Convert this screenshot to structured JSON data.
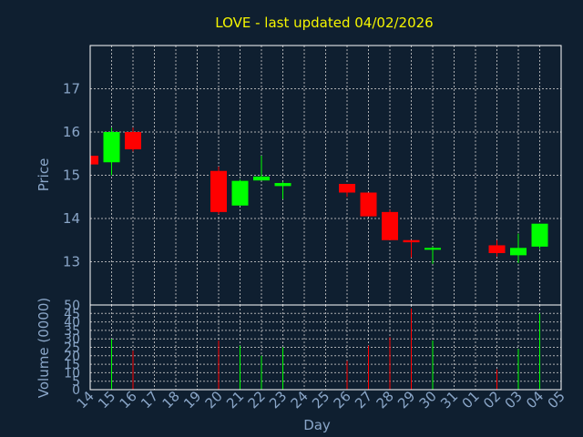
{
  "chart_data": {
    "type": "candlestick",
    "title": "LOVE - last updated 04/02/2026",
    "xlabel": "Day",
    "ylabel_price": "Price",
    "ylabel_volume": "Volume (0000)",
    "x_ticks": [
      "14",
      "15",
      "16",
      "17",
      "18",
      "19",
      "20",
      "21",
      "22",
      "23",
      "24",
      "25",
      "26",
      "27",
      "28",
      "29",
      "30",
      "31",
      "01",
      "02",
      "03",
      "04",
      "05"
    ],
    "price_ticks": [
      13,
      14,
      15,
      16,
      17
    ],
    "price_range": [
      12.0,
      18.0
    ],
    "volume_ticks": [
      0,
      5,
      10,
      15,
      20,
      25,
      30,
      35,
      40,
      45,
      50
    ],
    "volume_range": [
      0,
      50
    ],
    "grid": true,
    "colors": {
      "up": "#00ff00",
      "down": "#ff0000",
      "background": "#0f1f30",
      "title": "#f5f500",
      "axis_text": "#8aa6c8",
      "frame": "#ffffff"
    },
    "candles": [
      {
        "day": "14",
        "open": 15.45,
        "high": 15.45,
        "low": 15.2,
        "close": 15.25,
        "volume": 2
      },
      {
        "day": "15",
        "open": 15.3,
        "high": 16.1,
        "low": 15.0,
        "close": 16.0,
        "volume": 30
      },
      {
        "day": "16",
        "open": 16.0,
        "high": 16.1,
        "low": 15.55,
        "close": 15.6,
        "volume": 23
      },
      {
        "day": "20",
        "open": 15.1,
        "high": 15.2,
        "low": 14.1,
        "close": 14.15,
        "volume": 29
      },
      {
        "day": "21",
        "open": 14.3,
        "high": 14.9,
        "low": 14.3,
        "close": 14.87,
        "volume": 26
      },
      {
        "day": "22",
        "open": 14.88,
        "high": 15.45,
        "low": 14.88,
        "close": 14.97,
        "volume": 20
      },
      {
        "day": "23",
        "open": 14.75,
        "high": 14.85,
        "low": 14.45,
        "close": 14.82,
        "volume": 25
      },
      {
        "day": "26",
        "open": 14.8,
        "high": 14.8,
        "low": 14.5,
        "close": 14.6,
        "volume": 17
      },
      {
        "day": "27",
        "open": 14.6,
        "high": 14.6,
        "low": 14.05,
        "close": 14.05,
        "volume": 26
      },
      {
        "day": "28",
        "open": 14.15,
        "high": 14.2,
        "low": 13.5,
        "close": 13.5,
        "volume": 31
      },
      {
        "day": "29",
        "open": 13.5,
        "high": 13.5,
        "low": 13.1,
        "close": 13.45,
        "volume": 48
      },
      {
        "day": "30",
        "open": 13.28,
        "high": 13.35,
        "low": 12.95,
        "close": 13.32,
        "volume": 29
      },
      {
        "day": "02",
        "open": 13.38,
        "high": 13.5,
        "low": 13.12,
        "close": 13.2,
        "volume": 12
      },
      {
        "day": "03",
        "open": 13.15,
        "high": 13.65,
        "low": 12.97,
        "close": 13.32,
        "volume": 24
      },
      {
        "day": "04",
        "open": 13.35,
        "high": 13.88,
        "low": 13.3,
        "close": 13.88,
        "volume": 45
      }
    ]
  }
}
